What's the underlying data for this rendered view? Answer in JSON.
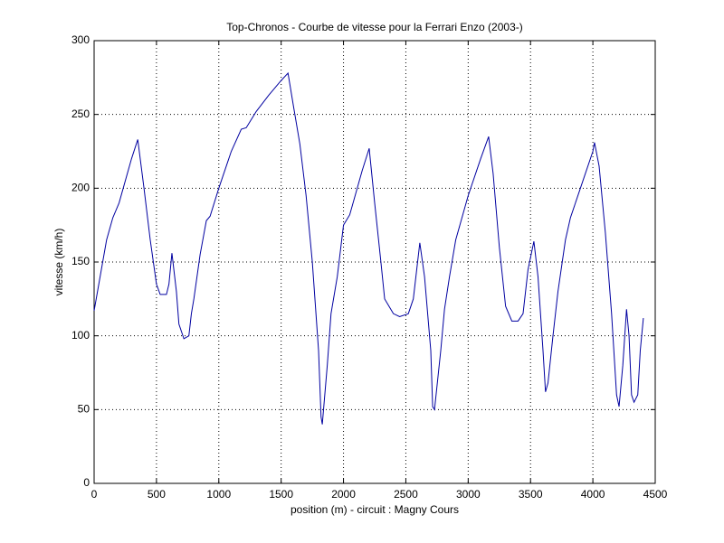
{
  "chart_data": {
    "type": "line",
    "title": "Top-Chronos - Courbe de vitesse pour la Ferrari Enzo (2003-)",
    "x_label": "position (m) - circuit : Magny Cours",
    "y_label": "vitesse (km/h)",
    "x": [
      0,
      100,
      150,
      200,
      300,
      350,
      400,
      450,
      500,
      530,
      580,
      600,
      624,
      660,
      680,
      720,
      760,
      780,
      800,
      850,
      900,
      930,
      1000,
      1100,
      1180,
      1220,
      1300,
      1400,
      1500,
      1555,
      1600,
      1650,
      1700,
      1750,
      1800,
      1820,
      1830,
      1870,
      1900,
      1950,
      2000,
      2050,
      2100,
      2150,
      2206,
      2250,
      2300,
      2330,
      2400,
      2450,
      2520,
      2560,
      2612,
      2650,
      2700,
      2715,
      2730,
      2780,
      2810,
      2850,
      2900,
      2950,
      3000,
      3100,
      3164,
      3200,
      3250,
      3300,
      3350,
      3400,
      3440,
      3480,
      3527,
      3560,
      3600,
      3620,
      3640,
      3680,
      3720,
      3780,
      3820,
      3900,
      4000,
      4013,
      4050,
      4100,
      4150,
      4190,
      4210,
      4240,
      4270,
      4290,
      4310,
      4330,
      4360,
      4380,
      4405
    ],
    "series": [
      {
        "name": "vitesse",
        "color": "#0000a0",
        "values": [
          117,
          165,
          180,
          190,
          220,
          233,
          200,
          165,
          135,
          128,
          128,
          135,
          156,
          130,
          108,
          98,
          100,
          115,
          125,
          155,
          178,
          181,
          200,
          225,
          240,
          241,
          252,
          263,
          273,
          278,
          255,
          230,
          195,
          150,
          90,
          45,
          40,
          80,
          115,
          140,
          175,
          182,
          197,
          212,
          227,
          190,
          150,
          125,
          115,
          113,
          115,
          125,
          163,
          140,
          90,
          52,
          50,
          90,
          118,
          140,
          165,
          180,
          195,
          220,
          235,
          210,
          160,
          120,
          110,
          110,
          115,
          145,
          164,
          140,
          90,
          62,
          68,
          100,
          130,
          165,
          180,
          200,
          225,
          231,
          215,
          170,
          115,
          60,
          52,
          80,
          118,
          100,
          60,
          55,
          60,
          90,
          112
        ]
      }
    ],
    "xlim": [
      0,
      4500
    ],
    "ylim": [
      0,
      300
    ],
    "xticks": [
      0,
      500,
      1000,
      1500,
      2000,
      2500,
      3000,
      3500,
      4000,
      4500
    ],
    "yticks": [
      0,
      50,
      100,
      150,
      200,
      250,
      300
    ],
    "grid": true
  }
}
